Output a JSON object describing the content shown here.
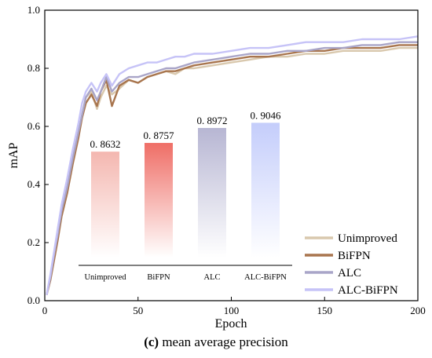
{
  "caption": {
    "label": "(c)",
    "text": " mean average precision"
  },
  "chart_data": {
    "type": "line",
    "xlabel": "Epoch",
    "ylabel": "mAP",
    "xlim": [
      0,
      200
    ],
    "ylim": [
      0,
      1.0
    ],
    "xticks": [
      "0",
      "50",
      "100",
      "150",
      "200"
    ],
    "yticks": [
      "0.0",
      "0.2",
      "0.4",
      "0.6",
      "0.8",
      "1.0"
    ],
    "legend_position": "bottom-right",
    "series": [
      {
        "name": "Unimproved",
        "color": "#d9c8ad",
        "x": [
          1,
          3,
          5,
          7,
          9,
          12,
          15,
          18,
          20,
          22,
          25,
          28,
          30,
          33,
          36,
          40,
          45,
          50,
          55,
          60,
          65,
          70,
          75,
          80,
          90,
          100,
          110,
          120,
          130,
          140,
          150,
          160,
          170,
          180,
          190,
          200
        ],
        "y": [
          0.02,
          0.08,
          0.15,
          0.22,
          0.3,
          0.38,
          0.48,
          0.57,
          0.64,
          0.7,
          0.72,
          0.66,
          0.7,
          0.74,
          0.71,
          0.73,
          0.76,
          0.75,
          0.77,
          0.78,
          0.79,
          0.78,
          0.8,
          0.8,
          0.81,
          0.82,
          0.83,
          0.84,
          0.84,
          0.85,
          0.85,
          0.86,
          0.86,
          0.86,
          0.87,
          0.87
        ]
      },
      {
        "name": "BiFPN",
        "color": "#a8754e",
        "x": [
          1,
          3,
          5,
          7,
          9,
          12,
          15,
          18,
          20,
          22,
          25,
          28,
          30,
          33,
          36,
          40,
          45,
          50,
          55,
          60,
          65,
          70,
          75,
          80,
          90,
          100,
          110,
          120,
          130,
          140,
          150,
          160,
          170,
          180,
          190,
          200
        ],
        "y": [
          0.02,
          0.07,
          0.14,
          0.21,
          0.29,
          0.37,
          0.47,
          0.56,
          0.63,
          0.68,
          0.71,
          0.67,
          0.72,
          0.76,
          0.67,
          0.74,
          0.76,
          0.75,
          0.77,
          0.78,
          0.79,
          0.79,
          0.8,
          0.81,
          0.82,
          0.83,
          0.84,
          0.84,
          0.85,
          0.86,
          0.86,
          0.87,
          0.87,
          0.87,
          0.88,
          0.88
        ]
      },
      {
        "name": "ALC",
        "color": "#a9a5c8",
        "x": [
          1,
          3,
          5,
          7,
          9,
          12,
          15,
          18,
          20,
          22,
          25,
          28,
          30,
          33,
          36,
          40,
          45,
          50,
          55,
          60,
          65,
          70,
          75,
          80,
          90,
          100,
          110,
          120,
          130,
          140,
          150,
          160,
          170,
          180,
          190,
          200
        ],
        "y": [
          0.02,
          0.08,
          0.16,
          0.23,
          0.31,
          0.39,
          0.49,
          0.58,
          0.64,
          0.7,
          0.73,
          0.69,
          0.72,
          0.77,
          0.72,
          0.75,
          0.77,
          0.77,
          0.78,
          0.79,
          0.8,
          0.8,
          0.81,
          0.82,
          0.83,
          0.84,
          0.85,
          0.85,
          0.86,
          0.86,
          0.87,
          0.87,
          0.88,
          0.88,
          0.89,
          0.89
        ]
      },
      {
        "name": "ALC-BiFPN",
        "color": "#c6c3f7",
        "x": [
          1,
          3,
          5,
          7,
          9,
          12,
          15,
          18,
          20,
          22,
          25,
          28,
          30,
          33,
          36,
          40,
          45,
          50,
          55,
          60,
          65,
          70,
          75,
          80,
          90,
          100,
          110,
          120,
          130,
          140,
          150,
          160,
          170,
          180,
          190,
          200
        ],
        "y": [
          0.02,
          0.09,
          0.17,
          0.25,
          0.33,
          0.42,
          0.52,
          0.61,
          0.68,
          0.72,
          0.75,
          0.72,
          0.75,
          0.78,
          0.74,
          0.78,
          0.8,
          0.81,
          0.82,
          0.82,
          0.83,
          0.84,
          0.84,
          0.85,
          0.85,
          0.86,
          0.87,
          0.87,
          0.88,
          0.89,
          0.89,
          0.89,
          0.9,
          0.9,
          0.9,
          0.91
        ]
      }
    ],
    "inset": {
      "type": "bar",
      "categories": [
        "Unimproved",
        "BiFPN",
        "ALC",
        "ALC-BiFPN"
      ],
      "values": [
        0.8632,
        0.8757,
        0.8972,
        0.9046
      ],
      "value_labels": [
        "0. 8632",
        "0. 8757",
        "0. 8972",
        "0. 9046"
      ],
      "colors": [
        "#f4b7b0",
        "#ef6e66",
        "#b7b6d3",
        "#c4cdfb"
      ]
    }
  }
}
